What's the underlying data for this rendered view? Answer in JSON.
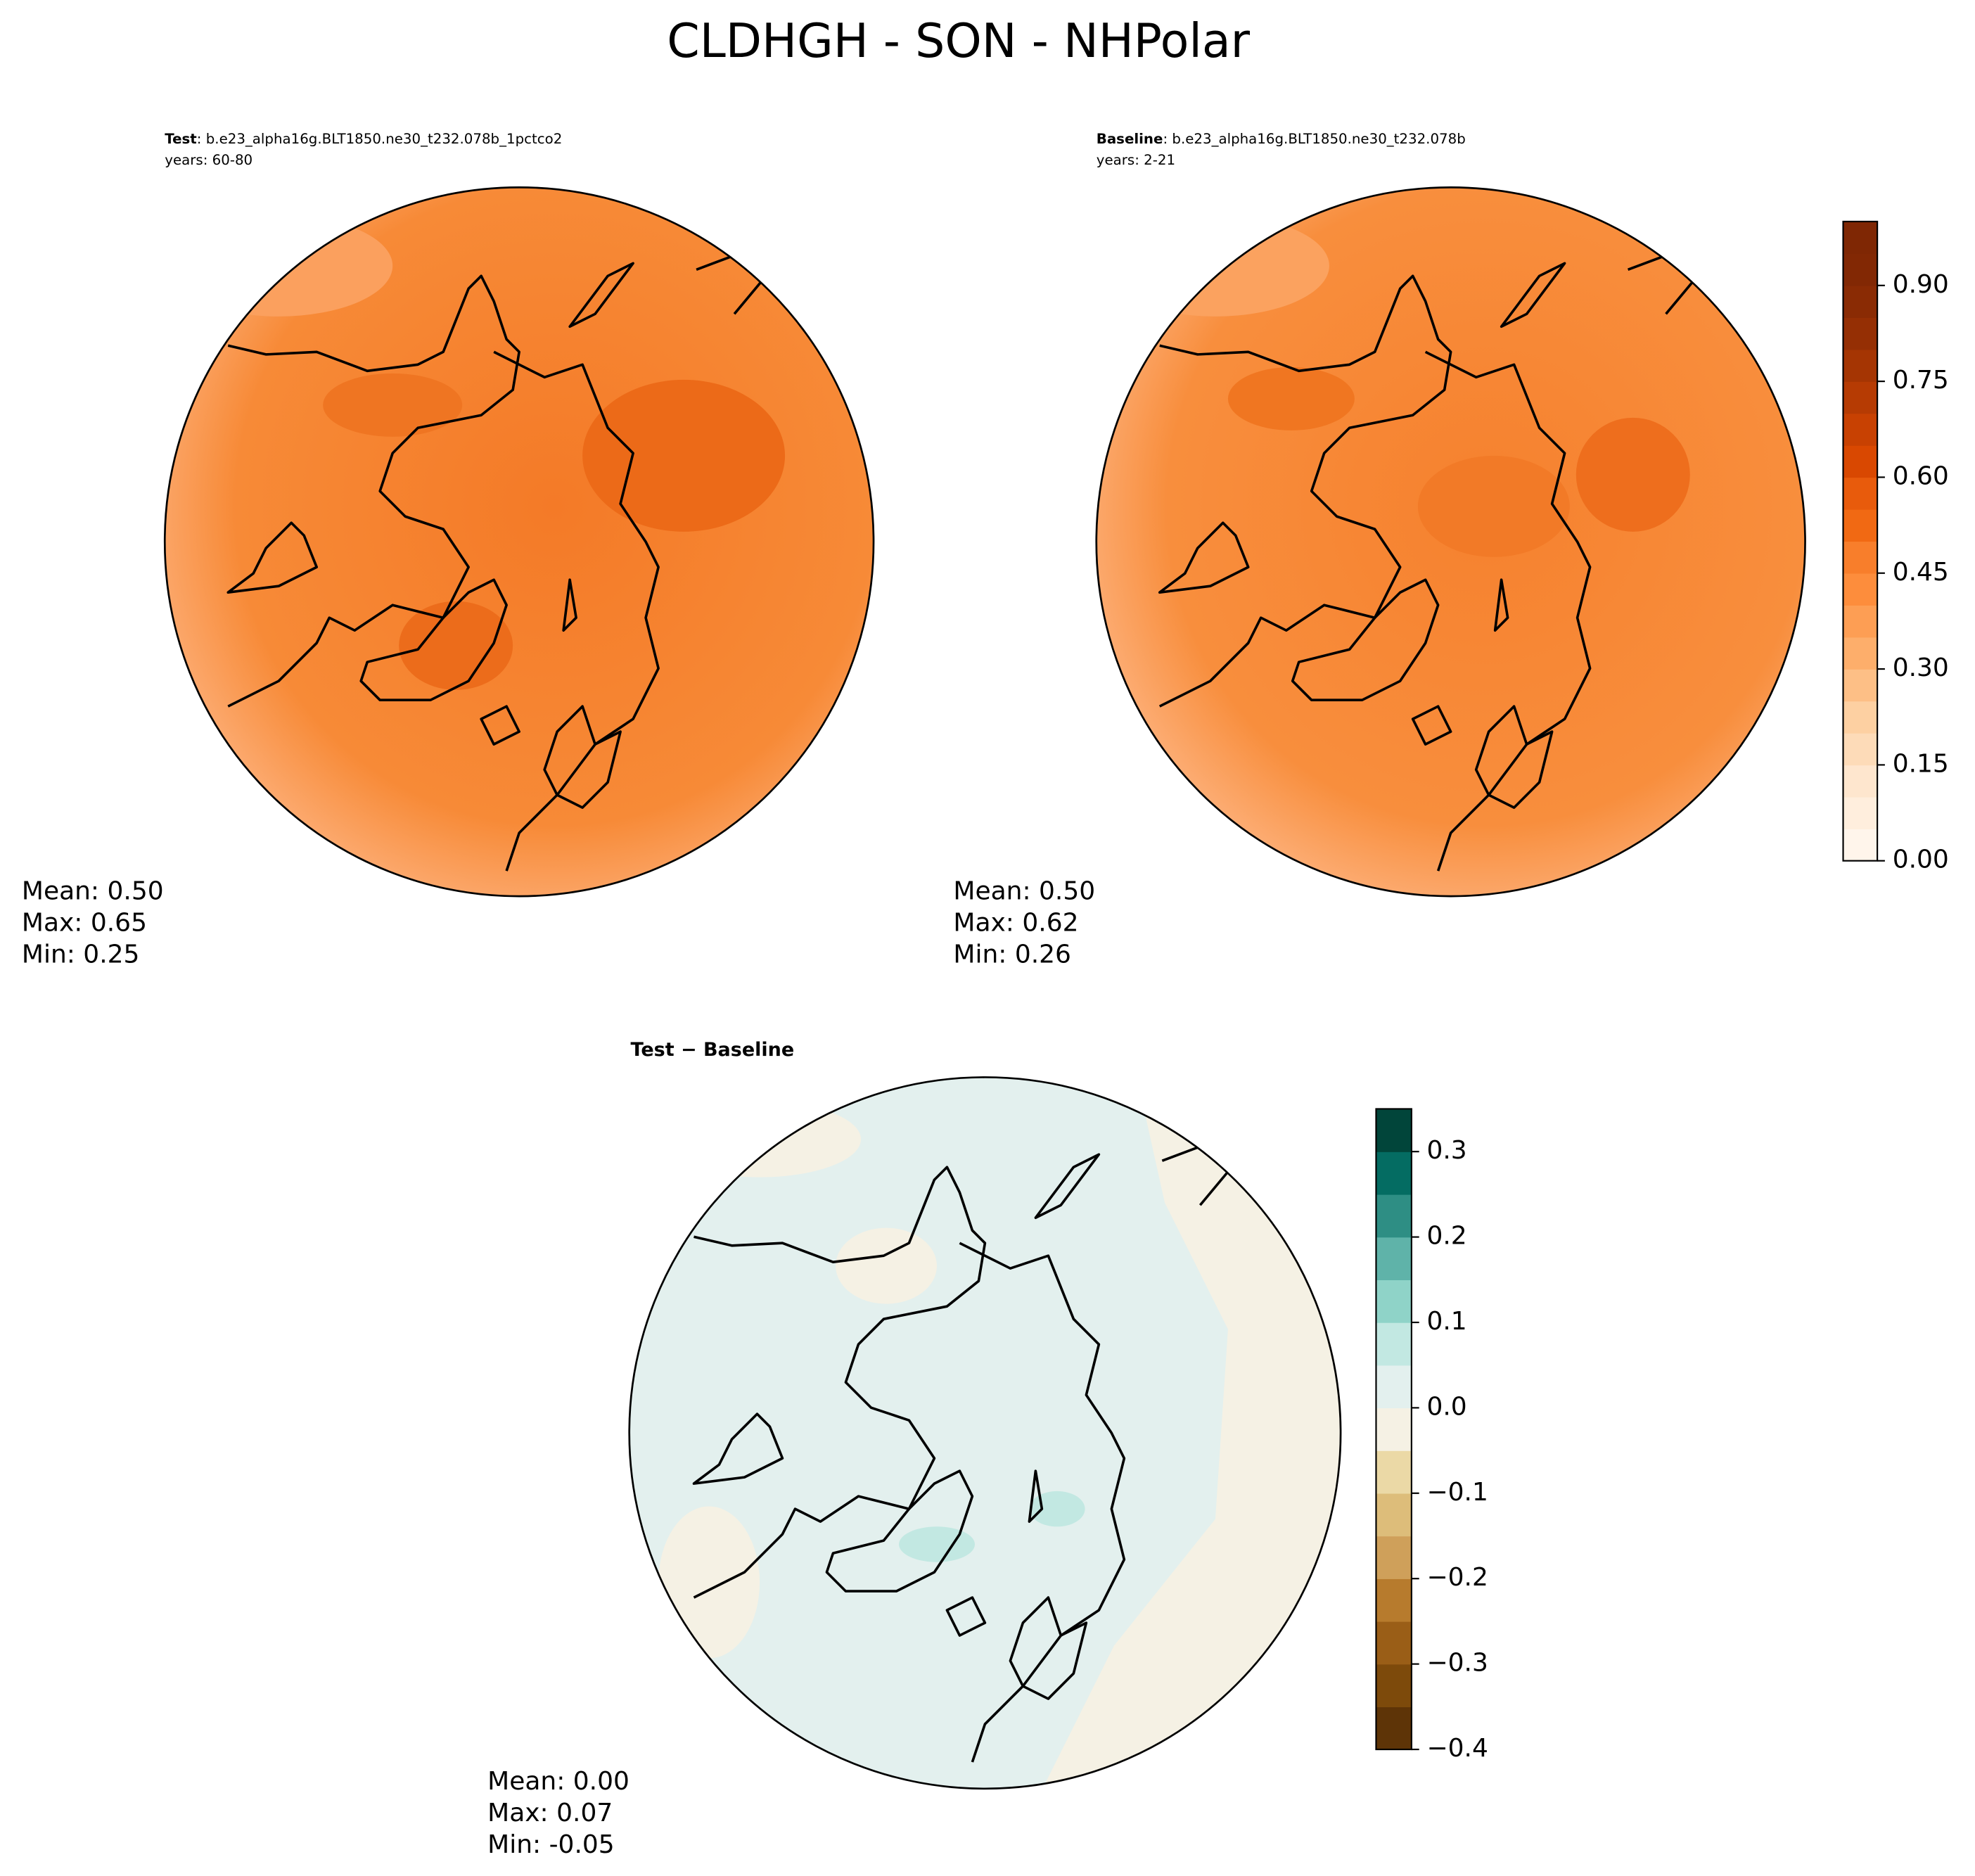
{
  "title": "CLDHGH - SON - NHPolar",
  "panels": [
    {
      "label_bold": "Test",
      "label_rest": ": b.e23_alpha16g.BLT1850.ne30_t232.078b_1pctco2",
      "years": "years: 60-80",
      "stats": [
        "Mean:  0.50",
        "Max:  0.65",
        "Min:  0.25"
      ]
    },
    {
      "label_bold": "Baseline",
      "label_rest": ": b.e23_alpha16g.BLT1850.ne30_t232.078b",
      "years": "years: 2-21",
      "stats": [
        "Mean:  0.50",
        "Max:  0.62",
        "Min:  0.26"
      ]
    },
    {
      "label_bold": "Test − Baseline",
      "stats": [
        "Mean:  0.00",
        "Max:  0.07",
        "Min: -0.05"
      ]
    }
  ],
  "colorbars": [
    {
      "lim": [
        0,
        1
      ],
      "ticks": [
        {
          "value": 0,
          "label": "0.00"
        },
        0.15,
        {
          "value": 0.3,
          "label": "0.30"
        },
        0.45,
        {
          "value": 0.6,
          "label": "0.60"
        },
        0.75,
        {
          "value": 0.9,
          "label": "0.90"
        }
      ],
      "colors": [
        "#fff5eb",
        "#ffeedd",
        "#fee6ce",
        "#fddbb8",
        "#fdd0a2",
        "#fdbf86",
        "#fdae6b",
        "#fd9e54",
        "#fd8d3c",
        "#f87e2b",
        "#f16913",
        "#e85b0c",
        "#d94801",
        "#c84102",
        "#b63b03",
        "#a53503",
        "#952f04",
        "#8a2b04",
        "#822804",
        "#7f2704"
      ]
    },
    {
      "lim": [
        -0.4,
        0.35
      ],
      "ticks": [
        {
          "value": -0.4,
          "label": "−0.4"
        },
        {
          "value": -0.3,
          "label": "−0.3"
        },
        {
          "value": -0.2,
          "label": "−0.2"
        },
        {
          "value": -0.1,
          "label": "−0.1"
        },
        {
          "value": 0,
          "label": "0.0"
        },
        0.1,
        0.2,
        0.3
      ],
      "colors": [
        "#5e3407",
        "#7d4a0b",
        "#9a5e17",
        "#b77b2d",
        "#cfa05a",
        "#ddbd7a",
        "#ebd9a6",
        "#f5f1e4",
        "#e3f0ee",
        "#c2e8e2",
        "#8fd3c8",
        "#5fb3a9",
        "#2e8e84",
        "#046c62",
        "#01453a"
      ]
    }
  ]
}
